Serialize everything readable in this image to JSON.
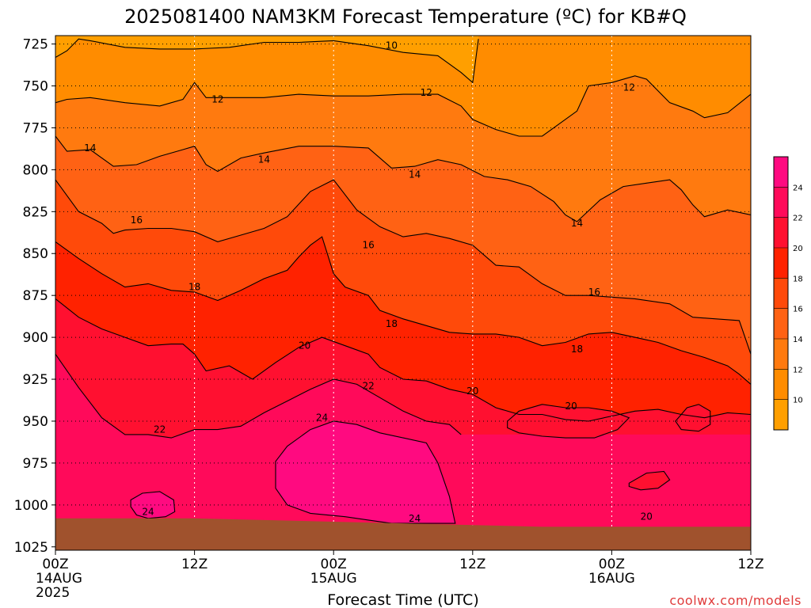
{
  "chart_data": {
    "type": "heatmap",
    "title": "2025081400 NAM3KM Forecast Temperature (ºC) for KB#Q",
    "xlabel": "Forecast Time (UTC)",
    "ylabel": "",
    "credit": "coolwx.com/models",
    "y_axis": {
      "values": [
        725,
        750,
        775,
        800,
        825,
        850,
        875,
        900,
        925,
        950,
        975,
        1000,
        1025
      ],
      "labels": [
        "725",
        "750",
        "775",
        "800",
        "825",
        "850",
        "875",
        "900",
        "925",
        "950",
        "975",
        "1000",
        "1025"
      ],
      "range": [
        720,
        1027
      ],
      "unit": "hPa (pressure level, increasing downward)"
    },
    "x_axis": {
      "hours": [
        0,
        12,
        24,
        36,
        48,
        60
      ],
      "labels": [
        [
          "00Z",
          "14AUG",
          "2025"
        ],
        [
          "12Z"
        ],
        [
          "00Z",
          "15AUG"
        ],
        [
          "12Z"
        ],
        [
          "00Z",
          "16AUG"
        ],
        [
          "12Z"
        ]
      ],
      "range_hours": [
        0,
        60
      ]
    },
    "colorbar": {
      "levels": [
        8,
        10,
        12,
        14,
        16,
        18,
        20,
        22,
        24,
        26
      ],
      "labels": [
        "10",
        "12",
        "14",
        "16",
        "18",
        "20",
        "22",
        "24"
      ],
      "label_values": [
        10,
        12,
        14,
        16,
        18,
        20,
        22,
        24
      ],
      "colors": [
        "#FF9F00",
        "#FF8C00",
        "#FF7A0F",
        "#FF6214",
        "#FF4A0A",
        "#FF2200",
        "#FF1030",
        "#FF0A5A",
        "#FF0A80"
      ]
    },
    "surface_color": "#A0522D",
    "surface_pressure_hpa": [
      {
        "hour": 0,
        "p": 1008
      },
      {
        "hour": 6,
        "p": 1008
      },
      {
        "hour": 12,
        "p": 1008
      },
      {
        "hour": 18,
        "p": 1009
      },
      {
        "hour": 24,
        "p": 1010
      },
      {
        "hour": 30,
        "p": 1011
      },
      {
        "hour": 36,
        "p": 1012
      },
      {
        "hour": 42,
        "p": 1013
      },
      {
        "hour": 48,
        "p": 1013
      },
      {
        "hour": 54,
        "p": 1013
      },
      {
        "hour": 60,
        "p": 1013
      }
    ],
    "isotherms": [
      {
        "value": 10,
        "points": [
          [
            0,
            733
          ],
          [
            1,
            729
          ],
          [
            2,
            722
          ],
          [
            3,
            723
          ],
          [
            6,
            727
          ],
          [
            9,
            728
          ],
          [
            12,
            728
          ],
          [
            15,
            727
          ],
          [
            18,
            724
          ],
          [
            21,
            724
          ],
          [
            24,
            723
          ],
          [
            27,
            726
          ],
          [
            30,
            730
          ],
          [
            33,
            732
          ],
          [
            35,
            742
          ],
          [
            36,
            748
          ],
          [
            36.5,
            722
          ]
        ]
      },
      {
        "value": 12,
        "points": [
          [
            0,
            760
          ],
          [
            1,
            758
          ],
          [
            3,
            757
          ],
          [
            6,
            760
          ],
          [
            9,
            762
          ],
          [
            11,
            758
          ],
          [
            12,
            748
          ],
          [
            13,
            757
          ],
          [
            15,
            757
          ],
          [
            18,
            757
          ],
          [
            21,
            755
          ],
          [
            24,
            756
          ],
          [
            27,
            756
          ],
          [
            30,
            755
          ],
          [
            33,
            755
          ],
          [
            35,
            762
          ],
          [
            36,
            770
          ],
          [
            38,
            776
          ],
          [
            40,
            780
          ],
          [
            42,
            780
          ],
          [
            43,
            775
          ],
          [
            45,
            765
          ],
          [
            46,
            750
          ],
          [
            48,
            748
          ],
          [
            50,
            744
          ],
          [
            51,
            746
          ],
          [
            53,
            760
          ],
          [
            55,
            765
          ],
          [
            56,
            769
          ],
          [
            58,
            766
          ],
          [
            60,
            755
          ]
        ]
      },
      {
        "value": 14,
        "points": [
          [
            0,
            780
          ],
          [
            1,
            789
          ],
          [
            3,
            788
          ],
          [
            5,
            798
          ],
          [
            7,
            797
          ],
          [
            9,
            792
          ],
          [
            11,
            788
          ],
          [
            12,
            786
          ],
          [
            13,
            797
          ],
          [
            14,
            801
          ],
          [
            16,
            793
          ],
          [
            18,
            790
          ],
          [
            21,
            786
          ],
          [
            24,
            786
          ],
          [
            27,
            787
          ],
          [
            29,
            799
          ],
          [
            31,
            798
          ],
          [
            33,
            794
          ],
          [
            35,
            797
          ],
          [
            37,
            804
          ],
          [
            39,
            806
          ],
          [
            41,
            810
          ],
          [
            43,
            819
          ],
          [
            44,
            827
          ],
          [
            45,
            831
          ],
          [
            47,
            818
          ],
          [
            49,
            810
          ],
          [
            51,
            808
          ],
          [
            53,
            806
          ],
          [
            54,
            812
          ],
          [
            55,
            821
          ],
          [
            56,
            828
          ],
          [
            58,
            824
          ],
          [
            60,
            827
          ]
        ]
      },
      {
        "value": 16,
        "points": [
          [
            0,
            806
          ],
          [
            2,
            825
          ],
          [
            4,
            832
          ],
          [
            5,
            838
          ],
          [
            6,
            836
          ],
          [
            8,
            835
          ],
          [
            10,
            835
          ],
          [
            12,
            837
          ],
          [
            14,
            843
          ],
          [
            16,
            839
          ],
          [
            18,
            835
          ],
          [
            20,
            828
          ],
          [
            22,
            813
          ],
          [
            24,
            806
          ],
          [
            26,
            824
          ],
          [
            28,
            834
          ],
          [
            30,
            840
          ],
          [
            32,
            838
          ],
          [
            34,
            841
          ],
          [
            36,
            845
          ],
          [
            38,
            857
          ],
          [
            40,
            858
          ],
          [
            42,
            868
          ],
          [
            44,
            875
          ],
          [
            46,
            875
          ],
          [
            48,
            876
          ],
          [
            50,
            877
          ],
          [
            53,
            880
          ],
          [
            55,
            888
          ],
          [
            57,
            889
          ],
          [
            59,
            890
          ],
          [
            60,
            910
          ]
        ]
      },
      {
        "value": 18,
        "points": [
          [
            0,
            843
          ],
          [
            2,
            853
          ],
          [
            4,
            862
          ],
          [
            6,
            870
          ],
          [
            8,
            868
          ],
          [
            10,
            872
          ],
          [
            12,
            873
          ],
          [
            14,
            878
          ],
          [
            16,
            872
          ],
          [
            18,
            865
          ],
          [
            20,
            860
          ],
          [
            21,
            852
          ],
          [
            22,
            845
          ],
          [
            23,
            840
          ],
          [
            24,
            862
          ],
          [
            25,
            870
          ],
          [
            27,
            875
          ],
          [
            28,
            884
          ],
          [
            30,
            889
          ],
          [
            32,
            893
          ],
          [
            34,
            897
          ],
          [
            36,
            898
          ],
          [
            38,
            898
          ],
          [
            40,
            900
          ],
          [
            42,
            905
          ],
          [
            44,
            903
          ],
          [
            46,
            898
          ],
          [
            48,
            897
          ],
          [
            50,
            900
          ],
          [
            52,
            903
          ],
          [
            54,
            908
          ],
          [
            56,
            912
          ],
          [
            58,
            917
          ],
          [
            59,
            922
          ],
          [
            60,
            928
          ]
        ]
      },
      {
        "value": 20,
        "points": [
          [
            0,
            877
          ],
          [
            2,
            888
          ],
          [
            4,
            895
          ],
          [
            6,
            900
          ],
          [
            8,
            905
          ],
          [
            10,
            904
          ],
          [
            11,
            904
          ],
          [
            12,
            910
          ],
          [
            13,
            920
          ],
          [
            15,
            917
          ],
          [
            17,
            925
          ],
          [
            19,
            915
          ],
          [
            21,
            906
          ],
          [
            23,
            900
          ],
          [
            25,
            905
          ],
          [
            27,
            910
          ],
          [
            28,
            918
          ],
          [
            30,
            925
          ],
          [
            32,
            926
          ],
          [
            34,
            931
          ],
          [
            36,
            934
          ],
          [
            38,
            942
          ],
          [
            40,
            946
          ],
          [
            42,
            946
          ],
          [
            44,
            949
          ],
          [
            46,
            950
          ],
          [
            48,
            947
          ],
          [
            50,
            944
          ],
          [
            52,
            943
          ],
          [
            54,
            946
          ],
          [
            56,
            948
          ],
          [
            58,
            945
          ],
          [
            60,
            946
          ]
        ]
      },
      {
        "value": 22,
        "points": [
          [
            0,
            910
          ],
          [
            2,
            930
          ],
          [
            4,
            948
          ],
          [
            6,
            958
          ],
          [
            8,
            958
          ],
          [
            10,
            960
          ],
          [
            12,
            955
          ],
          [
            14,
            955
          ],
          [
            16,
            953
          ],
          [
            18,
            945
          ],
          [
            20,
            938
          ],
          [
            22,
            931
          ],
          [
            24,
            925
          ],
          [
            26,
            928
          ],
          [
            28,
            936
          ],
          [
            30,
            944
          ],
          [
            32,
            950
          ],
          [
            34,
            952
          ],
          [
            35,
            958
          ]
        ]
      },
      {
        "value": 24,
        "points": [
          [
            19,
            974
          ],
          [
            20,
            965
          ],
          [
            22,
            955
          ],
          [
            24,
            950
          ],
          [
            26,
            952
          ],
          [
            28,
            957
          ],
          [
            30,
            960
          ],
          [
            32,
            963
          ],
          [
            33,
            975
          ],
          [
            34,
            995
          ],
          [
            34.5,
            1011
          ],
          [
            32,
            1011
          ],
          [
            29,
            1011
          ],
          [
            27,
            1009
          ],
          [
            25,
            1007
          ],
          [
            22,
            1005
          ],
          [
            20,
            1000
          ],
          [
            19,
            990
          ],
          [
            19,
            974
          ]
        ]
      },
      {
        "value": 24,
        "points": [
          [
            6.5,
            997
          ],
          [
            7.5,
            993
          ],
          [
            9,
            992
          ],
          [
            10.2,
            997
          ],
          [
            10.3,
            1004
          ],
          [
            9.5,
            1007
          ],
          [
            8,
            1008
          ],
          [
            7,
            1006
          ],
          [
            6.5,
            1001
          ],
          [
            6.5,
            997
          ]
        ]
      }
    ],
    "warm_cores": [
      {
        "value": 20,
        "points": [
          [
            39,
            950
          ],
          [
            40,
            944
          ],
          [
            42,
            940
          ],
          [
            44,
            942
          ],
          [
            46,
            942
          ],
          [
            48,
            944
          ],
          [
            49.5,
            948
          ],
          [
            48.5,
            955
          ],
          [
            46.5,
            960
          ],
          [
            44,
            960
          ],
          [
            42,
            959
          ],
          [
            40,
            957
          ],
          [
            39,
            954
          ]
        ]
      },
      {
        "value": 20,
        "points": [
          [
            53.5,
            950
          ],
          [
            54.5,
            942
          ],
          [
            55.5,
            940
          ],
          [
            56.5,
            944
          ],
          [
            56.5,
            952
          ],
          [
            55.5,
            956
          ],
          [
            54,
            955
          ]
        ]
      },
      {
        "value": 20,
        "points": [
          [
            49.5,
            987
          ],
          [
            51,
            981
          ],
          [
            52.5,
            980
          ],
          [
            53,
            985
          ],
          [
            52,
            990
          ],
          [
            50.5,
            991
          ],
          [
            49.5,
            989
          ]
        ]
      }
    ],
    "contour_labels": [
      {
        "text": "10",
        "hour": 29,
        "p": 726
      },
      {
        "text": "12",
        "hour": 14,
        "p": 758
      },
      {
        "text": "12",
        "hour": 32,
        "p": 754
      },
      {
        "text": "12",
        "hour": 49.5,
        "p": 751
      },
      {
        "text": "14",
        "hour": 3,
        "p": 787
      },
      {
        "text": "14",
        "hour": 18,
        "p": 794
      },
      {
        "text": "14",
        "hour": 31,
        "p": 803
      },
      {
        "text": "14",
        "hour": 45,
        "p": 832
      },
      {
        "text": "16",
        "hour": 7,
        "p": 830
      },
      {
        "text": "16",
        "hour": 27,
        "p": 845
      },
      {
        "text": "16",
        "hour": 46.5,
        "p": 873
      },
      {
        "text": "18",
        "hour": 12,
        "p": 870
      },
      {
        "text": "18",
        "hour": 29,
        "p": 892
      },
      {
        "text": "18",
        "hour": 45,
        "p": 907
      },
      {
        "text": "20",
        "hour": 21.5,
        "p": 905
      },
      {
        "text": "20",
        "hour": 36,
        "p": 932
      },
      {
        "text": "20",
        "hour": 44.5,
        "p": 941
      },
      {
        "text": "20",
        "hour": 51,
        "p": 1007
      },
      {
        "text": "22",
        "hour": 27,
        "p": 929
      },
      {
        "text": "22",
        "hour": 9,
        "p": 955
      },
      {
        "text": "24",
        "hour": 23,
        "p": 948
      },
      {
        "text": "24",
        "hour": 8,
        "p": 1004
      },
      {
        "text": "24",
        "hour": 31,
        "p": 1008
      }
    ]
  }
}
